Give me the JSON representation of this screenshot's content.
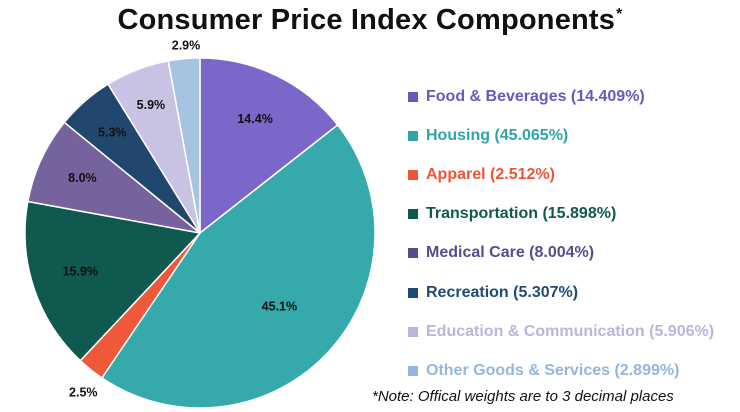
{
  "title": "Consumer Price Index Components",
  "title_mark": "*",
  "note": "*Note: Offical weights are to 3 decimal places",
  "chart_data": {
    "type": "pie",
    "title": "Consumer Price Index Components",
    "start_angle_deg": 0,
    "direction": "clockwise",
    "slices": [
      {
        "name": "Food & Beverages",
        "value": 14.409,
        "label": "14.4%",
        "legend": "Food & Beverages (14.409%)",
        "color": "#7b67c9",
        "legend_color": "#6b57bd"
      },
      {
        "name": "Housing",
        "value": 45.065,
        "label": "45.1%",
        "legend": "Housing (45.065%)",
        "color": "#35a9ab",
        "legend_color": "#2fa5a8"
      },
      {
        "name": "Apparel",
        "value": 2.512,
        "label": "2.5%",
        "legend": "Apparel (2.512%)",
        "color": "#f0583a",
        "legend_color": "#ee5535"
      },
      {
        "name": "Transportation",
        "value": 15.898,
        "label": "15.9%",
        "legend": "Transportation (15.898%)",
        "color": "#10594e",
        "legend_color": "#0e5a4e"
      },
      {
        "name": "Medical Care",
        "value": 8.004,
        "label": "8.0%",
        "legend": "Medical Care (8.004%)",
        "color": "#76639e",
        "legend_color": "#5c4a8e"
      },
      {
        "name": "Recreation",
        "value": 5.307,
        "label": "5.3%",
        "legend": "Recreation (5.307%)",
        "color": "#22476f",
        "legend_color": "#214a76"
      },
      {
        "name": "Education & Communication",
        "value": 5.906,
        "label": "5.9%",
        "legend": "Education & Communication (5.906%)",
        "color": "#c9c3e3",
        "legend_color": "#bcb5db"
      },
      {
        "name": "Other Goods & Services",
        "value": 2.899,
        "label": "2.9%",
        "legend": "Other Goods & Services (2.899%)",
        "color": "#a6c4e2",
        "legend_color": "#93b7dc"
      }
    ]
  }
}
